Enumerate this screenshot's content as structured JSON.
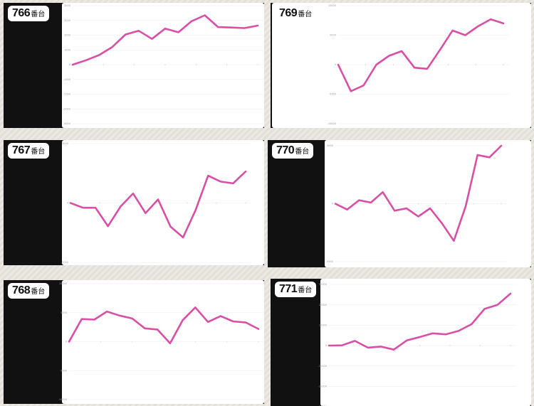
{
  "unit_suffix": "番台",
  "colors": {
    "line": "#d94fa6",
    "panel_bg": "#111111",
    "plot_bg": "#ffffff",
    "grid": "#eeeeee"
  },
  "chart_data": [
    {
      "id": "766",
      "machine_number": "766",
      "type": "line",
      "ylim": [
        -4000,
        4000
      ],
      "ytick_labels": [
        "4000",
        "3000",
        "2000",
        "1000",
        "0",
        "-1000",
        "-2000",
        "-3000",
        "-4000"
      ],
      "values": [
        0,
        300,
        650,
        1200,
        2050,
        2300,
        1750,
        2450,
        2200,
        2950,
        3350,
        2550,
        2520,
        2480,
        2650
      ]
    },
    {
      "id": "769",
      "machine_number": "769",
      "type": "line",
      "ylim": [
        -10000,
        10000
      ],
      "ytick_labels": [
        "10000",
        "5000",
        "0",
        "-5000",
        "-10000"
      ],
      "values": [
        0,
        -4500,
        -3500,
        0,
        1500,
        2300,
        -500,
        -700,
        2500,
        5800,
        5000,
        6500,
        7700,
        7000
      ]
    },
    {
      "id": "767",
      "machine_number": "767",
      "type": "line",
      "ylim": [
        -5000,
        5000
      ],
      "ytick_labels": [
        "5000",
        "0",
        "-5000"
      ],
      "values": [
        0,
        -400,
        -400,
        -1950,
        -300,
        800,
        -850,
        300,
        -2000,
        -2900,
        -600,
        2300,
        1800,
        1650,
        2650
      ]
    },
    {
      "id": "770",
      "machine_number": "770",
      "type": "line",
      "ylim": [
        -5000,
        5000
      ],
      "ytick_labels": [
        "5000",
        "0",
        "-5000"
      ],
      "values": [
        0,
        -500,
        300,
        100,
        1000,
        -600,
        -400,
        -1100,
        -400,
        -1700,
        -3200,
        -200,
        4200,
        4000,
        5000
      ]
    },
    {
      "id": "768",
      "machine_number": "768",
      "type": "line",
      "ylim": [
        -10000,
        10000
      ],
      "ytick_labels": [
        "10000",
        "5000",
        "0",
        "-5000",
        "-10000"
      ],
      "values": [
        0,
        3900,
        3800,
        5200,
        4500,
        4000,
        2300,
        2100,
        -300,
        3700,
        5900,
        3400,
        4400,
        3500,
        3300,
        2200
      ]
    },
    {
      "id": "771",
      "machine_number": "771",
      "type": "line",
      "ylim": [
        -30000,
        30000
      ],
      "ytick_labels": [
        "30000",
        "20000",
        "10000",
        "0",
        "-10000",
        "-20000",
        "-30000"
      ],
      "values": [
        0,
        100,
        2300,
        -1000,
        -500,
        -2000,
        2500,
        4200,
        6000,
        5500,
        7200,
        10500,
        18000,
        20000,
        25500
      ]
    }
  ]
}
